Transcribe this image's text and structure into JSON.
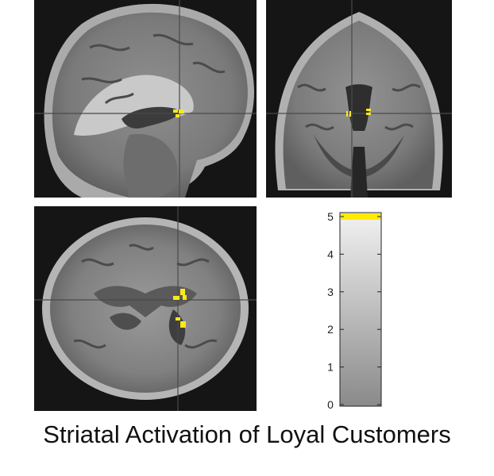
{
  "caption": "Striatal Activation of Loyal Customers",
  "colorbar": {
    "ticks": [
      "5",
      "4",
      "3",
      "2",
      "1",
      "0"
    ],
    "values": [
      5,
      4,
      3,
      2,
      1,
      0
    ],
    "range": [
      0,
      5
    ],
    "top_color": "#ffea00",
    "gradient": [
      "#f2f2f2",
      "#8a8a8a"
    ]
  },
  "colors": {
    "activation": "#ffe81a",
    "crosshair": "#4a4a4a",
    "background": "#151515"
  },
  "views": [
    "sagittal",
    "coronal",
    "axial"
  ]
}
